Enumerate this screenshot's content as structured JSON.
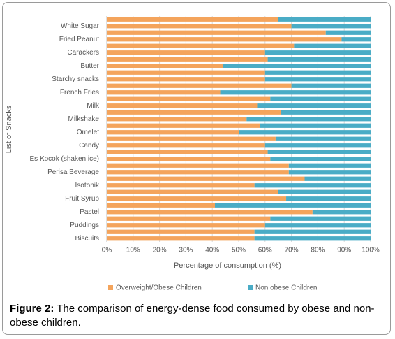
{
  "chart_data": {
    "type": "stacked_barh",
    "x_label": "Percentage of consumption (%)",
    "y_label": "List of Snacks",
    "categories": [
      null,
      "White Sugar",
      null,
      "Fried Peanut",
      null,
      "Carackers",
      null,
      "Butter",
      null,
      "Starchy snacks",
      null,
      "French Fries",
      null,
      "Milk",
      null,
      "Milkshake",
      null,
      "Omelet",
      null,
      "Candy",
      null,
      "Es Kocok (shaken ice)",
      null,
      "Perisa Beverage",
      null,
      "Isotonik",
      null,
      "Fruit Syrup",
      null,
      "Pastel",
      null,
      "Puddings",
      null,
      "Biscuits"
    ],
    "series": [
      {
        "name": "Overweight/Obese Children",
        "color": "#f4a45c",
        "values": [
          65,
          70,
          83,
          89,
          71,
          60,
          61,
          44,
          60,
          60,
          70,
          43,
          62,
          57,
          66,
          53,
          58,
          50,
          64,
          60,
          61,
          62,
          69,
          69,
          75,
          56,
          65,
          68,
          41,
          78,
          62,
          60,
          56,
          56
        ]
      },
      {
        "name": "Non obese Children",
        "color": "#4aacc6",
        "values": [
          35,
          30,
          17,
          11,
          29,
          40,
          39,
          56,
          40,
          40,
          30,
          57,
          38,
          43,
          34,
          47,
          42,
          50,
          36,
          40,
          39,
          38,
          31,
          31,
          25,
          44,
          35,
          32,
          59,
          22,
          38,
          40,
          44,
          44
        ]
      }
    ],
    "xlim": [
      0,
      100
    ],
    "xticks": [
      {
        "value": 0,
        "label": "0%"
      },
      {
        "value": 10,
        "label": "10%"
      },
      {
        "value": 20,
        "label": "20%"
      },
      {
        "value": 30,
        "label": "30%"
      },
      {
        "value": 40,
        "label": "40%"
      },
      {
        "value": 50,
        "label": "50%"
      },
      {
        "value": 60,
        "label": "60%"
      },
      {
        "value": 70,
        "label": "70%"
      },
      {
        "value": 80,
        "label": "80%"
      },
      {
        "value": 90,
        "label": "90%"
      },
      {
        "value": 100,
        "label": "100%"
      }
    ],
    "grid": true,
    "legend": "bottom"
  },
  "caption_label": "Figure 2:",
  "caption": "The comparison of energy-dense food consumed by obese and non-obese children."
}
